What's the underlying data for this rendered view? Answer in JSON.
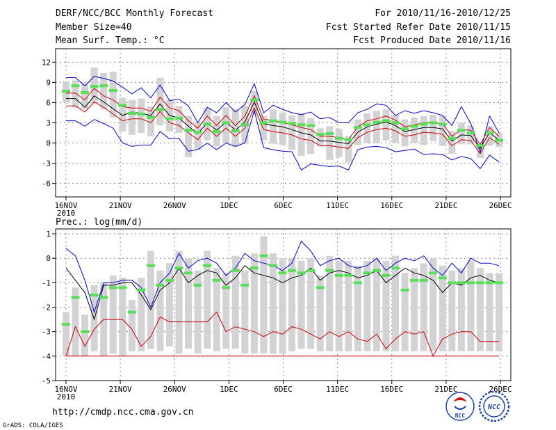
{
  "header": {
    "title": "DERF/NCC/BCC Monthly Forecast",
    "member_size": "Member Size=40",
    "variable": "Mean Surf. Temp.: °C",
    "period": "For 2010/11/16-2010/12/25",
    "started": "Fcst Started Refer Date 2010/11/15",
    "produced": "Fcst Produced Date 2010/11/16"
  },
  "footer": {
    "url": "http://cmdp.ncc.cma.gov.cn",
    "credit": "GrADS: COLA/IGES",
    "logo_bcc": "BCC",
    "logo_ncc": "NCC"
  },
  "colors": {
    "max": "#0000cc",
    "min": "#cc0000",
    "mean": "#000000",
    "bar": "#d3d3d6",
    "median": "#55e055",
    "grid": "#888888"
  },
  "chart_data": [
    {
      "type": "line",
      "name": "temperature",
      "xlim": [
        1,
        40
      ],
      "ylim": [
        -8,
        14
      ],
      "yticks": [
        -6,
        -3,
        0,
        3,
        6,
        9,
        12
      ],
      "ytick_labels": [
        "-6",
        "-3",
        "0",
        "3",
        "6",
        "9",
        "12"
      ],
      "xticks": [
        {
          "day": 1,
          "label": "16NOV"
        },
        {
          "day": 6,
          "label": "21NOV"
        },
        {
          "day": 11,
          "label": "26NOV"
        },
        {
          "day": 16,
          "label": "1DEC"
        },
        {
          "day": 21,
          "label": "6DEC"
        },
        {
          "day": 26,
          "label": "11DEC"
        },
        {
          "day": 31,
          "label": "16DEC"
        },
        {
          "day": 36,
          "label": "21DEC"
        },
        {
          "day": 41,
          "label": "26DEC"
        }
      ],
      "year_label": "2010",
      "series": [
        {
          "name": "max",
          "values": [
            9.7,
            9.7,
            8.5,
            9.9,
            9.6,
            9.2,
            8.3,
            7.3,
            8.2,
            6.7,
            8.6,
            6.3,
            6.5,
            5.5,
            3.0,
            5.3,
            4.5,
            6.0,
            4.6,
            5.7,
            8.8,
            4.5,
            5.6,
            5.0,
            4.5,
            4.2,
            4.6,
            3.6,
            3.8,
            3.0,
            3.0,
            4.5,
            5.0,
            5.8,
            5.6,
            4.1,
            4.8,
            4.4,
            4.8,
            4.5,
            4.1,
            2.6,
            5.4,
            2.9,
            -1.4,
            4.0,
            1.5
          ]
        },
        {
          "name": "mean",
          "values": [
            6.6,
            6.6,
            5.3,
            7.0,
            6.1,
            5.1,
            4.1,
            4.6,
            4.4,
            4.1,
            5.8,
            4.1,
            3.7,
            2.5,
            1.4,
            3.0,
            1.9,
            3.1,
            1.9,
            3.1,
            6.1,
            2.8,
            2.6,
            2.4,
            2.0,
            1.5,
            1.2,
            0.3,
            0.3,
            0.1,
            -0.1,
            1.6,
            2.4,
            2.8,
            3.1,
            2.6,
            1.7,
            2.0,
            2.3,
            2.3,
            2.1,
            0.3,
            1.2,
            1.1,
            -0.8,
            1.6,
            0.4
          ]
        },
        {
          "name": "upper",
          "values": [
            7.4,
            7.4,
            6.4,
            8.1,
            7.0,
            6.4,
            5.4,
            5.2,
            5.2,
            4.7,
            6.8,
            5.2,
            4.8,
            3.3,
            2.2,
            4.0,
            2.6,
            4.1,
            2.6,
            4.0,
            7.0,
            3.5,
            3.4,
            3.0,
            2.7,
            2.3,
            2.0,
            1.0,
            1.0,
            0.8,
            0.5,
            2.4,
            3.3,
            3.6,
            4.0,
            3.4,
            2.4,
            2.7,
            3.0,
            3.0,
            2.9,
            1.0,
            2.0,
            1.9,
            -0.2,
            2.3,
            1.0
          ]
        },
        {
          "name": "lower",
          "values": [
            5.5,
            5.5,
            4.6,
            6.1,
            5.3,
            4.3,
            3.3,
            3.6,
            3.6,
            3.0,
            4.7,
            3.0,
            2.6,
            1.5,
            0.5,
            2.2,
            1.0,
            2.2,
            1.0,
            2.2,
            5.2,
            2.0,
            1.7,
            1.5,
            1.2,
            0.6,
            0.4,
            -0.4,
            -0.4,
            -0.6,
            -0.8,
            0.8,
            1.6,
            2.0,
            2.2,
            1.8,
            1.0,
            1.2,
            1.6,
            1.5,
            1.3,
            -0.4,
            0.5,
            0.4,
            -1.6,
            0.8,
            -0.2
          ]
        },
        {
          "name": "min",
          "values": [
            3.3,
            3.3,
            2.5,
            3.5,
            2.9,
            2.2,
            0.0,
            -0.5,
            -0.3,
            -0.3,
            1.7,
            0.6,
            0.7,
            -1.2,
            -1.0,
            0.0,
            -1.0,
            0.0,
            -0.5,
            0.0,
            4.8,
            -0.7,
            -1.0,
            -1.2,
            -1.3,
            -4.0,
            -3.1,
            -3.3,
            -3.5,
            -3.4,
            -4.0,
            -1.0,
            -0.6,
            -0.5,
            -0.7,
            -1.3,
            -1.1,
            -0.9,
            -1.7,
            -1.6,
            -1.7,
            -2.5,
            -2.0,
            -2.3,
            -3.8,
            -1.8,
            -2.8
          ]
        },
        {
          "name": "median",
          "values": [
            7.7,
            8.5,
            7.5,
            8.4,
            8.5,
            7.8,
            5.6,
            4.4,
            4.3,
            3.8,
            5.0,
            3.6,
            3.7,
            1.9,
            1.6,
            2.8,
            1.7,
            3.0,
            1.8,
            2.7,
            6.4,
            3.0,
            3.3,
            3.1,
            2.9,
            2.7,
            2.6,
            1.3,
            1.4,
            0.7,
            0.5,
            2.3,
            2.7,
            3.1,
            3.3,
            3.0,
            2.1,
            2.5,
            2.8,
            3.0,
            2.8,
            0.7,
            1.9,
            1.5,
            -0.4,
            1.5,
            0.4
          ]
        },
        {
          "name": "box_top",
          "values": [
            9.2,
            9.3,
            8.8,
            11.2,
            10.4,
            10.6,
            6.7,
            6.4,
            6.6,
            5.4,
            9.7,
            6.4,
            5.5,
            4.0,
            3.1,
            5.2,
            4.0,
            5.3,
            5.0,
            5.5,
            7.7,
            4.0,
            5.0,
            4.5,
            4.1,
            4.4,
            3.7,
            2.2,
            2.5,
            2.1,
            1.0,
            3.5,
            4.4,
            4.8,
            5.0,
            4.2,
            3.5,
            3.8,
            4.0,
            4.2,
            4.0,
            1.8,
            3.0,
            2.6,
            -0.1,
            2.5,
            1.5
          ]
        },
        {
          "name": "box_bottom",
          "values": [
            6.0,
            5.3,
            5.0,
            5.9,
            5.0,
            3.8,
            1.7,
            1.2,
            1.5,
            1.0,
            2.6,
            1.7,
            1.5,
            -2.1,
            -1.0,
            0.4,
            -0.5,
            0.0,
            -0.6,
            -0.1,
            4.3,
            0.4,
            -0.1,
            -0.3,
            -1.0,
            -1.9,
            -1.6,
            -0.5,
            -2.5,
            -2.1,
            -2.9,
            -0.3,
            0.0,
            0.0,
            0.4,
            0.0,
            -0.5,
            0.0,
            -0.3,
            0.3,
            -0.4,
            -1.6,
            -0.2,
            -0.2,
            -2.2,
            -0.4,
            -0.6
          ]
        }
      ]
    },
    {
      "type": "line",
      "name": "precipitation",
      "title": "Prec.: log(mm/d)",
      "xlim": [
        1,
        40
      ],
      "ylim": [
        -5,
        1.2
      ],
      "yticks": [
        -5,
        -4,
        -3,
        -2,
        -1,
        0,
        1
      ],
      "ytick_labels": [
        "-5",
        "-4",
        "-3",
        "-2",
        "-1",
        "0",
        "1"
      ],
      "xticks": [
        {
          "day": 1,
          "label": "16NOV"
        },
        {
          "day": 6,
          "label": "21NOV"
        },
        {
          "day": 11,
          "label": "26NOV"
        },
        {
          "day": 16,
          "label": "1DEC"
        },
        {
          "day": 21,
          "label": "6DEC"
        },
        {
          "day": 26,
          "label": "11DEC"
        },
        {
          "day": 31,
          "label": "16DEC"
        },
        {
          "day": 36,
          "label": "21DEC"
        },
        {
          "day": 41,
          "label": "26DEC"
        }
      ],
      "year_label": "2010",
      "series": [
        {
          "name": "max",
          "values": [
            0.4,
            0.1,
            -0.9,
            -2.2,
            -1.0,
            -1.0,
            -0.9,
            -0.9,
            -1.2,
            -2.0,
            -1.0,
            -0.6,
            0.2,
            -0.4,
            -0.1,
            0.0,
            -0.2,
            -0.7,
            -0.4,
            0.2,
            -0.1,
            -0.2,
            -0.3,
            -0.5,
            -0.2,
            0.7,
            0.3,
            -0.3,
            -0.1,
            0.0,
            -0.3,
            -0.4,
            -0.3,
            0.0,
            -0.5,
            -0.2,
            0.0,
            -0.1,
            0.1,
            -0.4,
            -0.7,
            -0.2,
            -0.6,
            0.0,
            -0.2,
            -0.2,
            -0.3
          ]
        },
        {
          "name": "mean",
          "values": [
            -0.4,
            -0.9,
            -1.4,
            -2.5,
            -1.1,
            -1.1,
            -1.0,
            -1.0,
            -1.5,
            -2.1,
            -1.3,
            -1.0,
            -0.4,
            -1.0,
            -0.7,
            -0.5,
            -0.6,
            -1.1,
            -0.8,
            -0.3,
            -0.6,
            -0.7,
            -0.8,
            -1.0,
            -0.8,
            -0.7,
            -0.4,
            -0.9,
            -0.6,
            -0.5,
            -0.6,
            -0.8,
            -0.7,
            -0.5,
            -1.0,
            -0.7,
            -0.4,
            -0.6,
            -0.7,
            -0.9,
            -1.4,
            -1.0,
            -1.1,
            -0.8,
            -0.7,
            -0.9,
            -1.0
          ]
        },
        {
          "name": "min",
          "values": [
            -4.0,
            -2.8,
            -3.6,
            -2.9,
            -2.5,
            -2.5,
            -2.5,
            -2.9,
            -3.6,
            -3.2,
            -2.4,
            -2.6,
            -2.6,
            -2.6,
            -2.6,
            -2.6,
            -2.2,
            -3.0,
            -2.8,
            -2.9,
            -3.0,
            -3.2,
            -3.0,
            -3.1,
            -2.8,
            -2.9,
            -3.1,
            -3.3,
            -3.0,
            -3.2,
            -3.0,
            -3.3,
            -3.4,
            -3.1,
            -3.7,
            -3.3,
            -3.0,
            -3.1,
            -3.0,
            -4.0,
            -3.3,
            -3.1,
            -3.0,
            -3.0,
            -3.4,
            -3.4,
            -3.4
          ]
        },
        {
          "name": "floor",
          "values": [
            -4.0,
            -4.0,
            -4.0,
            -4.0,
            -4.0,
            -4.0,
            -4.0,
            -4.0,
            -4.0,
            -4.0,
            -4.0,
            -4.0,
            -4.0,
            -4.0,
            -4.0,
            -4.0,
            -4.0,
            -4.0,
            -4.0,
            -4.0,
            -4.0,
            -4.0,
            -4.0,
            -4.0,
            -4.0,
            -4.0,
            -4.0,
            -4.0,
            -4.0,
            -4.0,
            -4.0,
            -4.0,
            -4.0,
            -4.0,
            -4.0,
            -4.0,
            -4.0,
            -4.0,
            -4.0,
            -4.0,
            -4.0,
            -4.0,
            -4.0,
            -4.0,
            -4.0,
            -4.0,
            -4.0
          ]
        },
        {
          "name": "median",
          "values": [
            -2.7,
            -1.6,
            -3.0,
            -1.5,
            -1.6,
            -1.2,
            -1.2,
            -2.2,
            -1.3,
            -0.3,
            -1.1,
            -0.9,
            -0.4,
            -0.6,
            -1.1,
            -0.3,
            -0.9,
            -1.2,
            -0.5,
            -1.1,
            -0.4,
            0.1,
            -0.3,
            -0.6,
            -0.5,
            -0.6,
            -0.5,
            -1.2,
            -0.5,
            -0.7,
            -0.7,
            -1.0,
            -0.6,
            -0.5,
            -0.7,
            -0.4,
            -1.3,
            -0.9,
            -0.9,
            -0.6,
            -0.8,
            -1.0,
            -1.0,
            -1.0,
            -1.0,
            -1.0,
            -1.0
          ]
        },
        {
          "name": "box_top",
          "values": [
            -2.2,
            -1.2,
            -2.3,
            -1.1,
            -1.0,
            -0.7,
            -0.8,
            -1.7,
            -0.8,
            0.3,
            -0.5,
            -0.2,
            0.3,
            0.0,
            -0.5,
            0.3,
            -0.4,
            -0.6,
            0.1,
            -0.5,
            0.2,
            0.9,
            0.2,
            0.0,
            0.0,
            -0.1,
            0.0,
            -0.7,
            0.1,
            -0.1,
            -0.1,
            -0.3,
            -0.1,
            0.0,
            -0.1,
            0.1,
            -0.6,
            -0.4,
            -0.2,
            0.0,
            -0.3,
            -0.5,
            -0.4,
            -0.1,
            -0.4,
            -0.6,
            -0.6
          ]
        },
        {
          "name": "box_bottom",
          "values": [
            -4.0,
            -4.0,
            -4.0,
            -3.8,
            -4.0,
            -3.9,
            -4.0,
            -3.8,
            -3.8,
            -3.7,
            -3.8,
            -3.6,
            -3.9,
            -3.7,
            -3.9,
            -3.7,
            -3.8,
            -3.7,
            -3.7,
            -3.9,
            -3.9,
            -3.9,
            -3.9,
            -3.9,
            -3.8,
            -3.7,
            -3.7,
            -3.8,
            -3.8,
            -3.8,
            -3.8,
            -3.8,
            -3.8,
            -3.8,
            -3.8,
            -3.8,
            -3.8,
            -3.8,
            -3.8,
            -3.8,
            -3.8,
            -3.8,
            -3.8,
            -3.8,
            -3.8,
            -3.8,
            -3.8
          ]
        }
      ]
    }
  ]
}
